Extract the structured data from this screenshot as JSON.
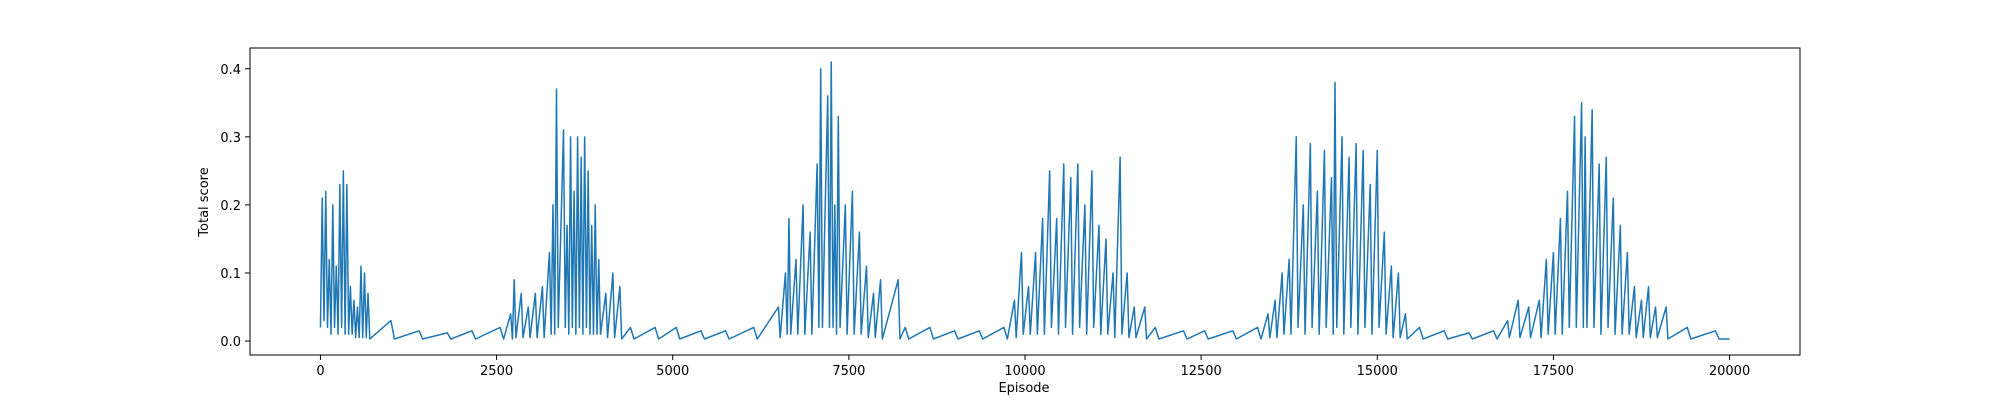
{
  "chart_data": {
    "type": "line",
    "xlabel": "Episode",
    "ylabel": "Total score",
    "xlim": [
      -1000,
      21000
    ],
    "ylim": [
      -0.0205,
      0.4305
    ],
    "xticks": [
      0,
      2500,
      5000,
      7500,
      10000,
      12500,
      15000,
      17500,
      20000
    ],
    "yticks": [
      {
        "value": 0,
        "label": "0.0"
      },
      0.1,
      0.2,
      0.3,
      0.4
    ],
    "series": [
      {
        "color": "#1f77b4",
        "x": [
          0,
          25,
          50,
          75,
          100,
          125,
          150,
          175,
          200,
          225,
          250,
          275,
          300,
          325,
          350,
          375,
          400,
          425,
          450,
          475,
          500,
          525,
          550,
          575,
          600,
          625,
          650,
          675,
          700,
          1000,
          1050,
          1400,
          1450,
          1800,
          1850,
          2150,
          2200,
          2550,
          2600,
          2700,
          2725,
          2750,
          2775,
          2850,
          2875,
          2950,
          2975,
          3050,
          3075,
          3150,
          3175,
          3250,
          3275,
          3300,
          3325,
          3350,
          3375,
          3450,
          3475,
          3500,
          3525,
          3550,
          3575,
          3600,
          3625,
          3650,
          3675,
          3700,
          3725,
          3750,
          3775,
          3800,
          3825,
          3850,
          3875,
          3900,
          3925,
          3950,
          3975,
          4050,
          4075,
          4150,
          4175,
          4250,
          4275,
          4400,
          4450,
          4750,
          4800,
          5050,
          5100,
          5400,
          5450,
          5750,
          5800,
          6150,
          6200,
          6500,
          6525,
          6600,
          6625,
          6650,
          6675,
          6750,
          6775,
          6850,
          6875,
          6950,
          6975,
          7050,
          7075,
          7100,
          7125,
          7200,
          7225,
          7250,
          7275,
          7300,
          7325,
          7350,
          7375,
          7450,
          7475,
          7550,
          7575,
          7650,
          7675,
          7750,
          7775,
          7850,
          7875,
          7950,
          7975,
          8200,
          8225,
          8300,
          8350,
          8650,
          8700,
          9000,
          9050,
          9350,
          9400,
          9700,
          9750,
          9850,
          9875,
          9950,
          9975,
          10050,
          10075,
          10150,
          10175,
          10250,
          10275,
          10350,
          10375,
          10450,
          10475,
          10550,
          10575,
          10650,
          10675,
          10750,
          10775,
          10850,
          10875,
          10950,
          10975,
          11050,
          11075,
          11150,
          11175,
          11250,
          11275,
          11350,
          11375,
          11450,
          11475,
          11550,
          11575,
          11700,
          11725,
          11850,
          11900,
          12250,
          12300,
          12550,
          12600,
          12950,
          13000,
          13300,
          13350,
          13450,
          13475,
          13550,
          13575,
          13650,
          13675,
          13750,
          13775,
          13850,
          13875,
          13950,
          13975,
          14050,
          14075,
          14150,
          14175,
          14250,
          14275,
          14350,
          14375,
          14400,
          14425,
          14500,
          14525,
          14600,
          14625,
          14700,
          14725,
          14800,
          14825,
          14900,
          14925,
          15000,
          15025,
          15100,
          15125,
          15200,
          15225,
          15300,
          15325,
          15400,
          15425,
          15600,
          15650,
          15950,
          16000,
          16300,
          16350,
          16650,
          16700,
          16850,
          16875,
          17000,
          17025,
          17150,
          17175,
          17300,
          17325,
          17400,
          17425,
          17500,
          17525,
          17600,
          17625,
          17700,
          17725,
          17800,
          17825,
          17900,
          17925,
          17950,
          17975,
          18050,
          18075,
          18150,
          18175,
          18250,
          18275,
          18350,
          18375,
          18450,
          18475,
          18550,
          18575,
          18650,
          18675,
          18750,
          18775,
          18850,
          18875,
          18950,
          18975,
          19100,
          19125,
          19400,
          19450,
          19800,
          19850,
          20000
        ],
        "values": [
          0.02,
          0.21,
          0.03,
          0.22,
          0.02,
          0.12,
          0.01,
          0.2,
          0.02,
          0.11,
          0.01,
          0.23,
          0.02,
          0.25,
          0.01,
          0.23,
          0.01,
          0.08,
          0.01,
          0.06,
          0.005,
          0.05,
          0.005,
          0.11,
          0.005,
          0.1,
          0.005,
          0.07,
          0.003,
          0.03,
          0.003,
          0.015,
          0.003,
          0.012,
          0.003,
          0.015,
          0.003,
          0.02,
          0.003,
          0.04,
          0.003,
          0.09,
          0.005,
          0.07,
          0.005,
          0.05,
          0.005,
          0.07,
          0.005,
          0.08,
          0.005,
          0.13,
          0.01,
          0.2,
          0.01,
          0.37,
          0.02,
          0.31,
          0.02,
          0.17,
          0.01,
          0.3,
          0.02,
          0.22,
          0.01,
          0.3,
          0.02,
          0.27,
          0.01,
          0.3,
          0.02,
          0.25,
          0.01,
          0.17,
          0.01,
          0.2,
          0.01,
          0.12,
          0.01,
          0.07,
          0.005,
          0.1,
          0.005,
          0.08,
          0.003,
          0.02,
          0.003,
          0.02,
          0.003,
          0.02,
          0.003,
          0.015,
          0.003,
          0.015,
          0.003,
          0.02,
          0.003,
          0.05,
          0.005,
          0.1,
          0.01,
          0.18,
          0.01,
          0.12,
          0.01,
          0.2,
          0.01,
          0.16,
          0.01,
          0.26,
          0.02,
          0.4,
          0.02,
          0.36,
          0.02,
          0.41,
          0.02,
          0.2,
          0.01,
          0.33,
          0.02,
          0.2,
          0.01,
          0.22,
          0.01,
          0.16,
          0.01,
          0.11,
          0.005,
          0.07,
          0.005,
          0.09,
          0.003,
          0.09,
          0.003,
          0.02,
          0.003,
          0.02,
          0.003,
          0.015,
          0.003,
          0.015,
          0.003,
          0.02,
          0.003,
          0.06,
          0.005,
          0.13,
          0.01,
          0.08,
          0.01,
          0.13,
          0.01,
          0.18,
          0.01,
          0.25,
          0.02,
          0.18,
          0.01,
          0.26,
          0.02,
          0.24,
          0.01,
          0.26,
          0.02,
          0.2,
          0.01,
          0.25,
          0.02,
          0.17,
          0.01,
          0.15,
          0.01,
          0.1,
          0.005,
          0.27,
          0.01,
          0.1,
          0.005,
          0.05,
          0.005,
          0.05,
          0.003,
          0.02,
          0.003,
          0.015,
          0.003,
          0.015,
          0.003,
          0.015,
          0.003,
          0.02,
          0.003,
          0.04,
          0.005,
          0.06,
          0.005,
          0.1,
          0.01,
          0.12,
          0.01,
          0.3,
          0.02,
          0.2,
          0.01,
          0.29,
          0.02,
          0.22,
          0.01,
          0.28,
          0.02,
          0.24,
          0.01,
          0.38,
          0.02,
          0.3,
          0.01,
          0.27,
          0.02,
          0.29,
          0.01,
          0.28,
          0.02,
          0.23,
          0.01,
          0.28,
          0.02,
          0.16,
          0.01,
          0.11,
          0.005,
          0.1,
          0.005,
          0.04,
          0.003,
          0.02,
          0.003,
          0.015,
          0.003,
          0.012,
          0.003,
          0.015,
          0.003,
          0.03,
          0.005,
          0.06,
          0.005,
          0.05,
          0.005,
          0.06,
          0.005,
          0.12,
          0.01,
          0.13,
          0.01,
          0.18,
          0.01,
          0.22,
          0.02,
          0.33,
          0.02,
          0.35,
          0.02,
          0.3,
          0.02,
          0.34,
          0.02,
          0.26,
          0.01,
          0.27,
          0.02,
          0.21,
          0.01,
          0.17,
          0.01,
          0.13,
          0.01,
          0.08,
          0.005,
          0.06,
          0.005,
          0.08,
          0.005,
          0.05,
          0.005,
          0.05,
          0.003,
          0.02,
          0.003,
          0.015,
          0.003,
          0.003
        ]
      }
    ]
  }
}
